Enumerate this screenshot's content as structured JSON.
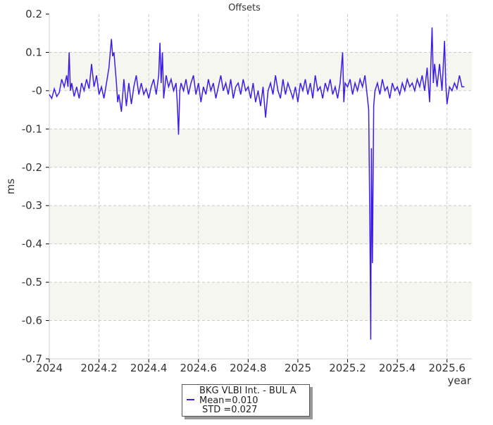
{
  "chart_data": {
    "type": "line",
    "title": "Offsets",
    "xlabel": "year",
    "ylabel": "ms",
    "xlim": [
      2024,
      2025.7
    ],
    "ylim": [
      -0.7,
      0.2
    ],
    "xticks": [
      "2024",
      "2024.2",
      "2024.4",
      "2024.6",
      "2024.8",
      "2025",
      "2025.2",
      "2025.4",
      "2025.6"
    ],
    "yticks": [
      "0.2",
      "0.1",
      "-0",
      "-0.1",
      "-0.2",
      "-0.3",
      "-0.4",
      "-0.5",
      "-0.6",
      "-0.7"
    ],
    "grid": true,
    "legend_placement": "bottom-center",
    "series": [
      {
        "name": "BKG VLBI Int. - BUL A",
        "color": "#3a1ee8",
        "mean": "Mean=0.010",
        "std": "STD =0.027",
        "points": [
          [
            2024.0,
            -0.01
          ],
          [
            2024.01,
            -0.02
          ],
          [
            2024.02,
            0.005
          ],
          [
            2024.03,
            -0.015
          ],
          [
            2024.04,
            -0.005
          ],
          [
            2024.05,
            0.03
          ],
          [
            2024.06,
            0.01
          ],
          [
            2024.07,
            0.04
          ],
          [
            2024.075,
            0.01
          ],
          [
            2024.08,
            0.1
          ],
          [
            2024.085,
            0.0
          ],
          [
            2024.09,
            0.02
          ],
          [
            2024.1,
            -0.015
          ],
          [
            2024.11,
            0.01
          ],
          [
            2024.12,
            -0.02
          ],
          [
            2024.13,
            0.02
          ],
          [
            2024.14,
            0.0
          ],
          [
            2024.15,
            0.03
          ],
          [
            2024.16,
            0.005
          ],
          [
            2024.17,
            0.07
          ],
          [
            2024.18,
            0.01
          ],
          [
            2024.19,
            0.04
          ],
          [
            2024.2,
            -0.01
          ],
          [
            2024.21,
            0.01
          ],
          [
            2024.22,
            -0.02
          ],
          [
            2024.23,
            0.02
          ],
          [
            2024.24,
            0.06
          ],
          [
            2024.25,
            0.135
          ],
          [
            2024.255,
            0.09
          ],
          [
            2024.26,
            0.1
          ],
          [
            2024.27,
            0.02
          ],
          [
            2024.275,
            -0.03
          ],
          [
            2024.28,
            -0.01
          ],
          [
            2024.29,
            -0.055
          ],
          [
            2024.3,
            0.03
          ],
          [
            2024.31,
            -0.04
          ],
          [
            2024.32,
            0.02
          ],
          [
            2024.33,
            -0.035
          ],
          [
            2024.34,
            0.01
          ],
          [
            2024.35,
            0.04
          ],
          [
            2024.36,
            -0.01
          ],
          [
            2024.37,
            0.02
          ],
          [
            2024.38,
            -0.01
          ],
          [
            2024.39,
            0.005
          ],
          [
            2024.4,
            -0.02
          ],
          [
            2024.41,
            0.01
          ],
          [
            2024.42,
            0.03
          ],
          [
            2024.43,
            -0.01
          ],
          [
            2024.44,
            0.04
          ],
          [
            2024.445,
            0.125
          ],
          [
            2024.45,
            0.02
          ],
          [
            2024.455,
            0.1
          ],
          [
            2024.46,
            -0.02
          ],
          [
            2024.47,
            0.04
          ],
          [
            2024.48,
            0.01
          ],
          [
            2024.49,
            0.03
          ],
          [
            2024.5,
            0.0
          ],
          [
            2024.51,
            0.02
          ],
          [
            2024.515,
            -0.035
          ],
          [
            2024.52,
            -0.115
          ],
          [
            2024.525,
            0.0
          ],
          [
            2024.53,
            0.02
          ],
          [
            2024.54,
            0.0
          ],
          [
            2024.55,
            0.03
          ],
          [
            2024.56,
            -0.01
          ],
          [
            2024.57,
            0.02
          ],
          [
            2024.58,
            0.04
          ],
          [
            2024.59,
            -0.01
          ],
          [
            2024.6,
            0.02
          ],
          [
            2024.61,
            -0.03
          ],
          [
            2024.62,
            0.01
          ],
          [
            2024.63,
            -0.01
          ],
          [
            2024.64,
            0.03
          ],
          [
            2024.65,
            0.0
          ],
          [
            2024.66,
            0.02
          ],
          [
            2024.67,
            -0.02
          ],
          [
            2024.68,
            0.01
          ],
          [
            2024.69,
            0.04
          ],
          [
            2024.7,
            0.0
          ],
          [
            2024.71,
            0.02
          ],
          [
            2024.72,
            -0.01
          ],
          [
            2024.73,
            0.03
          ],
          [
            2024.74,
            -0.02
          ],
          [
            2024.75,
            0.01
          ],
          [
            2024.76,
            0.02
          ],
          [
            2024.77,
            -0.01
          ],
          [
            2024.78,
            0.03
          ],
          [
            2024.79,
            0.0
          ],
          [
            2024.8,
            0.01
          ],
          [
            2024.81,
            -0.02
          ],
          [
            2024.82,
            0.02
          ],
          [
            2024.83,
            -0.03
          ],
          [
            2024.84,
            0.0
          ],
          [
            2024.85,
            -0.04
          ],
          [
            2024.86,
            0.01
          ],
          [
            2024.87,
            -0.07
          ],
          [
            2024.88,
            0.0
          ],
          [
            2024.89,
            0.02
          ],
          [
            2024.9,
            -0.01
          ],
          [
            2024.91,
            0.04
          ],
          [
            2024.92,
            0.0
          ],
          [
            2024.93,
            -0.02
          ],
          [
            2024.94,
            0.03
          ],
          [
            2024.95,
            -0.01
          ],
          [
            2024.96,
            0.02
          ],
          [
            2024.97,
            0.0
          ],
          [
            2024.98,
            -0.02
          ],
          [
            2024.99,
            0.01
          ],
          [
            2025.0,
            -0.03
          ],
          [
            2025.01,
            0.02
          ],
          [
            2025.02,
            0.0
          ],
          [
            2025.03,
            0.03
          ],
          [
            2025.04,
            -0.01
          ],
          [
            2025.05,
            0.02
          ],
          [
            2025.06,
            -0.02
          ],
          [
            2025.07,
            0.04
          ],
          [
            2025.08,
            0.0
          ],
          [
            2025.09,
            0.01
          ],
          [
            2025.1,
            -0.02
          ],
          [
            2025.11,
            0.02
          ],
          [
            2025.12,
            0.0
          ],
          [
            2025.13,
            0.03
          ],
          [
            2025.14,
            -0.01
          ],
          [
            2025.15,
            0.01
          ],
          [
            2025.16,
            -0.02
          ],
          [
            2025.17,
            0.02
          ],
          [
            2025.18,
            0.1
          ],
          [
            2025.185,
            -0.03
          ],
          [
            2025.19,
            0.02
          ],
          [
            2025.2,
            0.01
          ],
          [
            2025.21,
            0.03
          ],
          [
            2025.22,
            -0.01
          ],
          [
            2025.23,
            0.02
          ],
          [
            2025.24,
            0.0
          ],
          [
            2025.25,
            0.03
          ],
          [
            2025.26,
            0.01
          ],
          [
            2025.27,
            0.04
          ],
          [
            2025.28,
            -0.02
          ],
          [
            2025.285,
            -0.05
          ],
          [
            2025.29,
            -0.38
          ],
          [
            2025.293,
            -0.65
          ],
          [
            2025.296,
            -0.15
          ],
          [
            2025.3,
            -0.45
          ],
          [
            2025.305,
            -0.04
          ],
          [
            2025.31,
            0.0
          ],
          [
            2025.32,
            0.02
          ],
          [
            2025.33,
            -0.01
          ],
          [
            2025.34,
            0.03
          ],
          [
            2025.35,
            0.0
          ],
          [
            2025.36,
            0.01
          ],
          [
            2025.37,
            -0.02
          ],
          [
            2025.38,
            0.02
          ],
          [
            2025.39,
            0.0
          ],
          [
            2025.4,
            0.01
          ],
          [
            2025.41,
            -0.01
          ],
          [
            2025.42,
            0.02
          ],
          [
            2025.43,
            0.0
          ],
          [
            2025.44,
            0.03
          ],
          [
            2025.45,
            0.01
          ],
          [
            2025.46,
            0.02
          ],
          [
            2025.47,
            0.0
          ],
          [
            2025.48,
            0.03
          ],
          [
            2025.49,
            0.01
          ],
          [
            2025.5,
            0.04
          ],
          [
            2025.51,
            0.0
          ],
          [
            2025.52,
            0.06
          ],
          [
            2025.53,
            -0.03
          ],
          [
            2025.54,
            0.165
          ],
          [
            2025.545,
            0.02
          ],
          [
            2025.55,
            0.07
          ],
          [
            2025.56,
            0.01
          ],
          [
            2025.57,
            0.07
          ],
          [
            2025.58,
            0.0
          ],
          [
            2025.59,
            0.13
          ],
          [
            2025.595,
            0.02
          ],
          [
            2025.6,
            -0.035
          ],
          [
            2025.61,
            0.01
          ],
          [
            2025.62,
            0.0
          ],
          [
            2025.63,
            0.02
          ],
          [
            2025.64,
            0.005
          ],
          [
            2025.65,
            0.04
          ],
          [
            2025.66,
            0.01
          ],
          [
            2025.67,
            0.01
          ]
        ]
      }
    ]
  }
}
